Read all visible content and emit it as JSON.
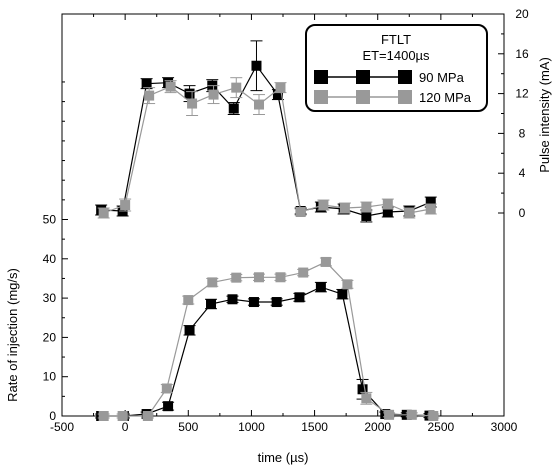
{
  "chart_data": {
    "type": "line",
    "legend": {
      "title_line1": "FTLT",
      "title_line2": "ET=1400µs",
      "placement": "top-right",
      "entries": [
        {
          "label": "90 MPa",
          "color": "#000000"
        },
        {
          "label": "120 MPa",
          "color": "#999999"
        }
      ]
    },
    "x_axis": {
      "label": "time (µs)",
      "range": [
        -500,
        3000
      ],
      "ticks": [
        -500,
        0,
        500,
        1000,
        1500,
        2000,
        2500,
        3000
      ]
    },
    "left_axis": {
      "label": "Rate of injection (mg/s)",
      "range": [
        0,
        50
      ],
      "ticks": [
        0,
        10,
        20,
        30,
        40,
        50
      ]
    },
    "right_axis": {
      "label": "Pulse intensity (mA)",
      "range": [
        0,
        20
      ],
      "ticks": [
        0,
        4,
        8,
        12,
        16,
        20
      ]
    },
    "series": [
      {
        "name": "90 MPa",
        "axis": "left",
        "color": "#000000",
        "x": [
          -190,
          -10,
          170,
          340,
          510,
          680,
          850,
          1020,
          1200,
          1380,
          1550,
          1720,
          1880,
          2060,
          2230,
          2410
        ],
        "y": [
          0,
          0,
          0.5,
          2.5,
          21.8,
          28.5,
          29.7,
          29,
          29,
          30.2,
          32.8,
          31,
          6.8,
          0.5,
          0.3,
          0.1
        ],
        "err": [
          0.5,
          0.5,
          0.5,
          1,
          1.2,
          1.2,
          0.8,
          0.8,
          0.8,
          1,
          1.2,
          1.2,
          2.5,
          0.5,
          0.5,
          0.5
        ]
      },
      {
        "name": "120 MPa",
        "axis": "left",
        "color": "#999999",
        "x": [
          -170,
          -20,
          180,
          330,
          500,
          690,
          880,
          1060,
          1230,
          1410,
          1590,
          1760,
          1910,
          2090,
          2270,
          2440
        ],
        "y": [
          0,
          0,
          0,
          7,
          29.5,
          34,
          35.2,
          35.3,
          35.3,
          36.5,
          39.2,
          33.5,
          4.5,
          0.3,
          0.3,
          0
        ],
        "err": [
          0.5,
          0.5,
          0.5,
          1,
          1,
          1,
          0.8,
          0.8,
          0.8,
          0.8,
          1,
          1,
          1.5,
          0.5,
          0.5,
          0.5
        ]
      },
      {
        "name": "90 MPa",
        "axis": "right",
        "color": "#000000",
        "x": [
          -190,
          -20,
          170,
          340,
          510,
          690,
          860,
          1040,
          1210,
          1390,
          1550,
          1730,
          1910,
          2080,
          2250,
          2420
        ],
        "y": [
          0.3,
          0.2,
          13,
          13.1,
          12,
          12.8,
          10.5,
          14.8,
          11.9,
          0.2,
          0.6,
          0.4,
          -0.3,
          0.1,
          0.2,
          1.1
        ],
        "err": [
          0.5,
          0.5,
          0.5,
          0.5,
          0.8,
          0.6,
          0.6,
          2.5,
          0.5,
          0.3,
          0.5,
          0.5,
          0.6,
          0.5,
          0.5,
          0.5
        ]
      },
      {
        "name": "120 MPa",
        "axis": "right",
        "color": "#999999",
        "x": [
          -170,
          0,
          190,
          360,
          530,
          700,
          880,
          1060,
          1230,
          1390,
          1570,
          1740,
          1910,
          2080,
          2250,
          2420
        ],
        "y": [
          0,
          0.8,
          11.8,
          12.7,
          11,
          11.9,
          12.6,
          10.9,
          12.6,
          0.1,
          0.8,
          0.5,
          0.6,
          0.9,
          0,
          0.4
        ],
        "err": [
          0.5,
          0.6,
          0.8,
          0.6,
          1.2,
          0.9,
          1,
          1,
          0.5,
          0.3,
          0.5,
          0.5,
          0.5,
          0.5,
          0.5,
          0.5
        ]
      }
    ]
  }
}
